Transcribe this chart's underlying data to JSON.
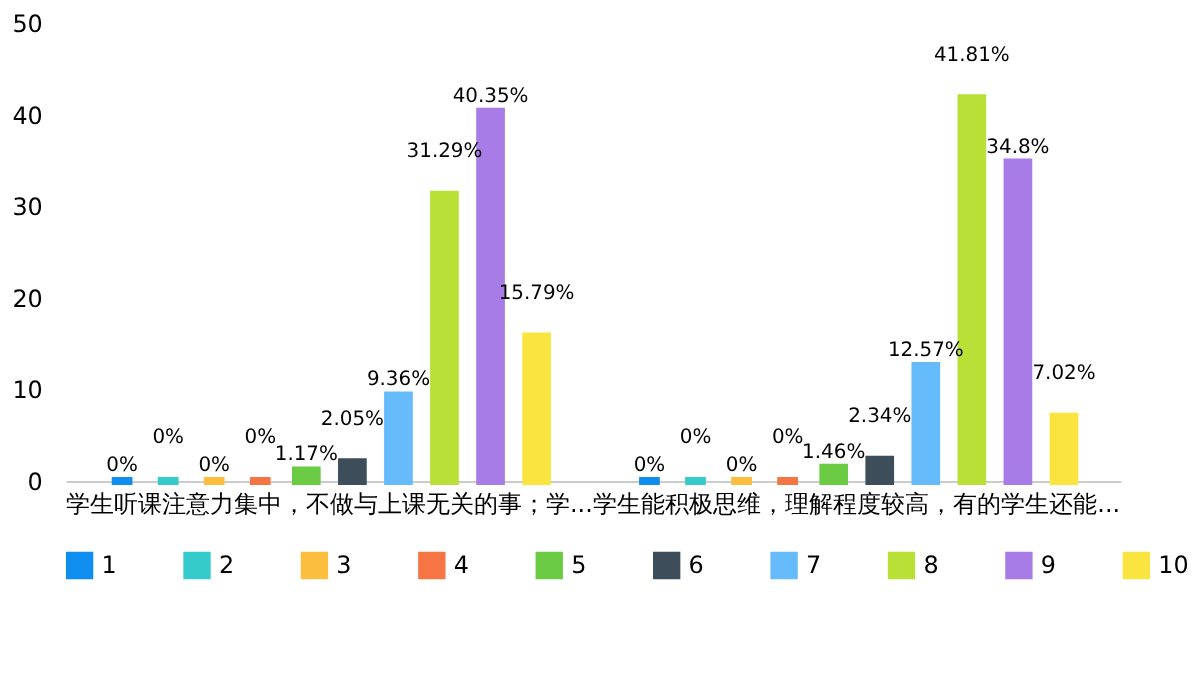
{
  "chart_data": {
    "type": "bar",
    "categories": [
      "学生听课注意力集中，不做与上课无关的事；学...",
      "学生能积极思维，理解程度较高，有的学生还能..."
    ],
    "series": [
      {
        "name": "1",
        "color": "#0f8ef0",
        "values": [
          0,
          0
        ],
        "value_labels": [
          "0%",
          "0%"
        ]
      },
      {
        "name": "2",
        "color": "#36cbcb",
        "values": [
          0,
          0
        ],
        "value_labels": [
          "0%",
          "0%"
        ]
      },
      {
        "name": "3",
        "color": "#fbbe3e",
        "values": [
          0,
          0
        ],
        "value_labels": [
          "0%",
          "0%"
        ]
      },
      {
        "name": "4",
        "color": "#f57545",
        "values": [
          0,
          0
        ],
        "value_labels": [
          "0%",
          "0%"
        ]
      },
      {
        "name": "5",
        "color": "#6bcb44",
        "values": [
          1.17,
          1.46
        ],
        "value_labels": [
          "1.17%",
          "1.46%"
        ]
      },
      {
        "name": "6",
        "color": "#3d4d5a",
        "values": [
          2.05,
          2.34
        ],
        "value_labels": [
          "2.05%",
          "2.34%"
        ]
      },
      {
        "name": "7",
        "color": "#66bbfa",
        "values": [
          9.36,
          12.57
        ],
        "value_labels": [
          "9.36%",
          "12.57%"
        ]
      },
      {
        "name": "8",
        "color": "#b8e036",
        "values": [
          31.29,
          41.81
        ],
        "value_labels": [
          "31.29%",
          "41.81%"
        ]
      },
      {
        "name": "9",
        "color": "#a87ce6",
        "values": [
          40.35,
          34.8
        ],
        "value_labels": [
          "40.35%",
          "34.8%"
        ]
      },
      {
        "name": "10",
        "color": "#fae43f",
        "values": [
          15.79,
          7.02
        ],
        "value_labels": [
          "15.79%",
          "7.02%"
        ]
      }
    ],
    "ylim": [
      0,
      50
    ],
    "yticks": [
      0,
      10,
      20,
      30,
      40,
      50
    ],
    "grid": false,
    "legend": "bottom"
  }
}
